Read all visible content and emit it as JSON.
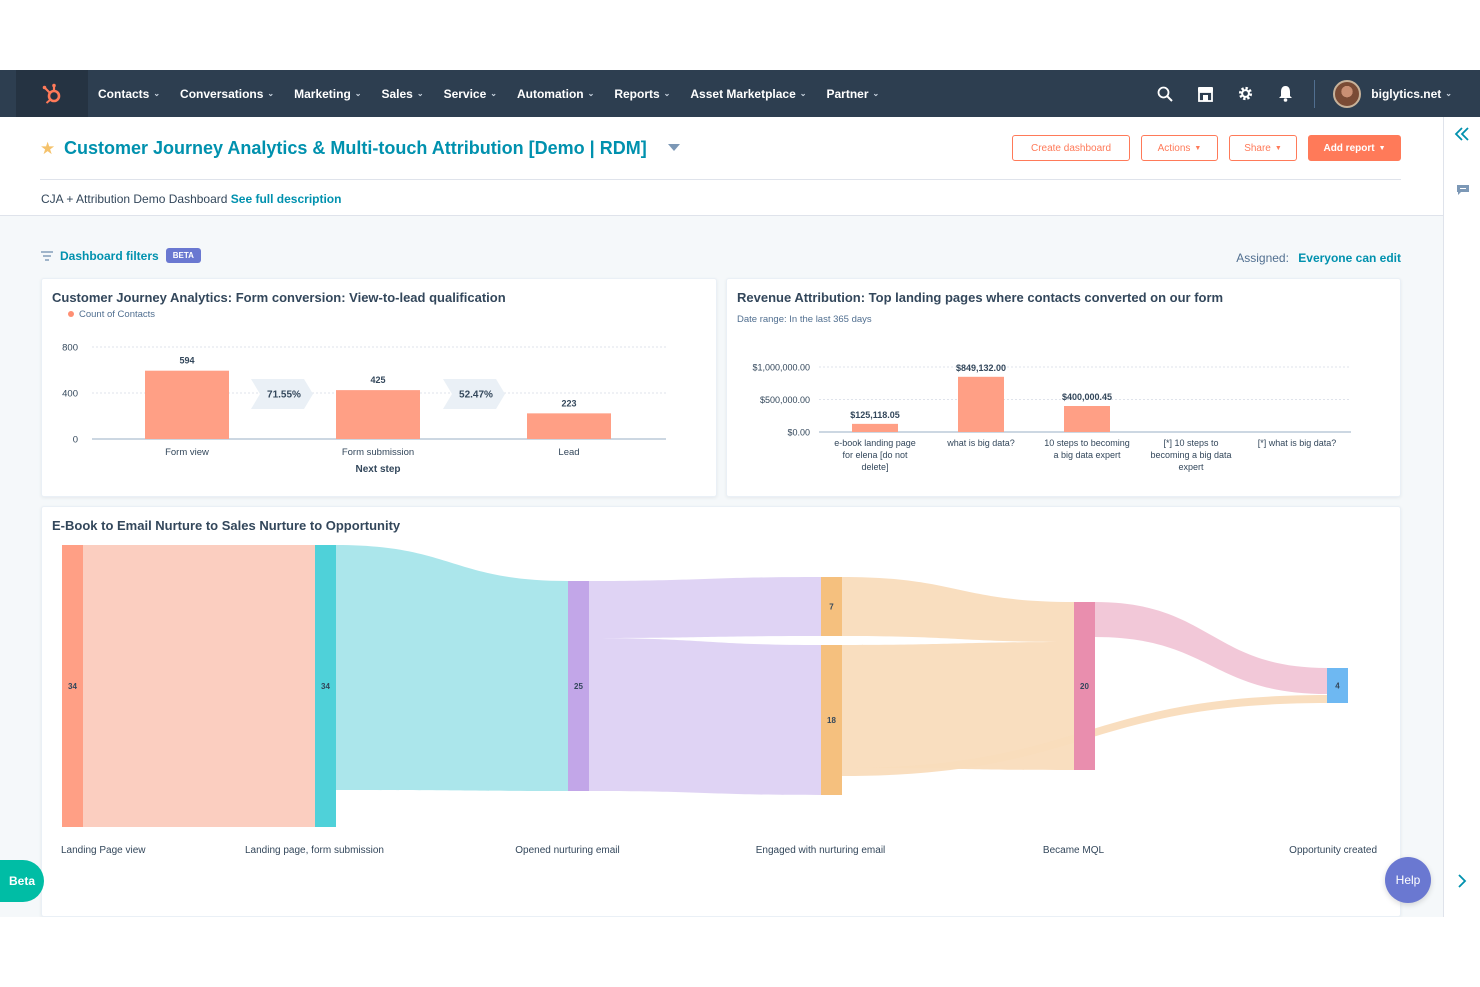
{
  "nav": {
    "items": [
      "Contacts",
      "Conversations",
      "Marketing",
      "Sales",
      "Service",
      "Automation",
      "Reports",
      "Asset Marketplace",
      "Partner"
    ],
    "account": "biglytics.net"
  },
  "header": {
    "title": "Customer Journey Analytics & Multi-touch Attribution [Demo | RDM]",
    "buttons": {
      "create": "Create dashboard",
      "actions": "Actions",
      "share": "Share",
      "add": "Add report"
    },
    "description": "CJA + Attribution Demo Dashboard",
    "description_link": "See full description"
  },
  "filters": {
    "label": "Dashboard filters",
    "badge": "BETA",
    "assigned_label": "Assigned:",
    "assigned_value": "Everyone can edit"
  },
  "colors": {
    "nav_bg": "#2d3e50",
    "accent_teal": "#0091ae",
    "accent_orange": "#ff7a59",
    "bar": "#ff9f85"
  },
  "chart_data": [
    {
      "type": "bar",
      "title": "Customer Journey Analytics: Form conversion: View-to-lead qualification",
      "legend": "Count of Contacts",
      "categories": [
        "Form view",
        "Form submission",
        "Lead"
      ],
      "values": [
        594,
        425,
        223
      ],
      "value_labels": [
        "594",
        "425",
        "223"
      ],
      "conversion_rates": [
        "71.55%",
        "52.47%"
      ],
      "xlabel": "Next step",
      "yticks": [
        "800",
        "400",
        "0"
      ],
      "ylim": [
        0,
        800
      ]
    },
    {
      "type": "bar",
      "title": "Revenue Attribution: Top landing pages where contacts converted on our form",
      "subtitle": "Date range: In the last 365 days",
      "categories": [
        [
          "e-book landing page",
          "for elena [do not",
          "delete]"
        ],
        [
          "what is big data?"
        ],
        [
          "10 steps to becoming",
          "a big data expert"
        ],
        [
          "[*] 10 steps to",
          "becoming a big data",
          "expert"
        ],
        [
          "[*] what is big data?"
        ]
      ],
      "values": [
        125118.05,
        849132.0,
        400000.45,
        0,
        0
      ],
      "value_labels": [
        "$125,118.05",
        "$849,132.00",
        "$400,000.45",
        "",
        ""
      ],
      "yticks": [
        "$1,000,000.00",
        "$500,000.00",
        "$0.00"
      ],
      "ylim": [
        0,
        1000000
      ]
    },
    {
      "type": "sankey",
      "title": "E-Book to Email Nurture to Sales Nurture to Opportunity",
      "stages": [
        "Landing Page view",
        "Landing page, form submission",
        "Opened nurturing email",
        "Engaged with nurturing email",
        "Became MQL",
        "Opportunity created"
      ],
      "nodes": [
        {
          "label": "34",
          "stage": 0,
          "color": "#ff9f85"
        },
        {
          "label": "34",
          "stage": 1,
          "color": "#4fd1d9"
        },
        {
          "label": "25",
          "stage": 2,
          "color": "#c2a6e8"
        },
        {
          "label": "7",
          "stage": 3,
          "color": "#f5c07e"
        },
        {
          "label": "18",
          "stage": 3,
          "color": "#f5c07e"
        },
        {
          "label": "20",
          "stage": 4,
          "color": "#e98eae"
        },
        {
          "label": "4",
          "stage": 5,
          "color": "#6eb8f2"
        }
      ],
      "links": [
        {
          "from": 0,
          "to": 1,
          "value": 34
        },
        {
          "from": 1,
          "to": 2,
          "value": 25
        },
        {
          "from": 2,
          "to": 3,
          "value": 7
        },
        {
          "from": 2,
          "to": 4,
          "value": 18
        },
        {
          "from": 3,
          "to": 5,
          "value": 7
        },
        {
          "from": 4,
          "to": 5,
          "value": 13
        },
        {
          "from": 4,
          "to": 6,
          "value": 1
        },
        {
          "from": 5,
          "to": 6,
          "value": 3
        }
      ]
    }
  ],
  "floating": {
    "beta": "Beta",
    "help": "Help"
  }
}
